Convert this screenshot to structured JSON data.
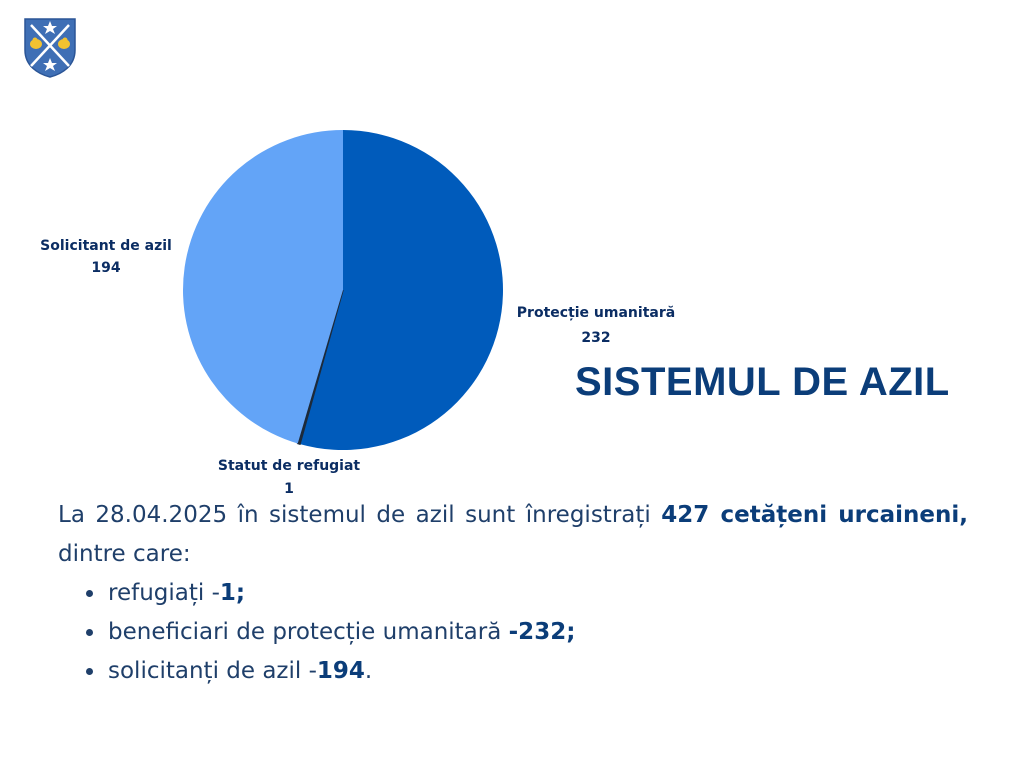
{
  "crest": {
    "icon": "crest-icon",
    "colors": {
      "shield": "#3f6fb5",
      "gold": "#f2c230",
      "white": "#ffffff"
    }
  },
  "title": "SISTEMUL DE AZIL",
  "chart_data": {
    "type": "pie",
    "slices": [
      {
        "name": "Protecție umanitară",
        "value": 232,
        "color": "#005bbb"
      },
      {
        "name": "Statut de refugiat",
        "value": 1,
        "color": "#1d2a3a"
      },
      {
        "name": "Solicitant de azil",
        "value": 194,
        "color": "#63a4f7"
      }
    ],
    "start_angle_deg": 0,
    "direction": "clockwise",
    "legend": "none"
  },
  "text": {
    "intro_pre": "La 28.04.2025 în sistemul de azil sunt înregistrați ",
    "intro_bold": "427 cetățeni urcaineni,",
    "intro_post": " dintre care:",
    "bullets": [
      {
        "pre": "refugiați -",
        "bold": "1;",
        "post": ""
      },
      {
        "pre": "beneficiari de protecție umanitară ",
        "bold": "-232;",
        "post": ""
      },
      {
        "pre": "solicitanți de azil -",
        "bold": "194",
        "post": "."
      }
    ]
  }
}
